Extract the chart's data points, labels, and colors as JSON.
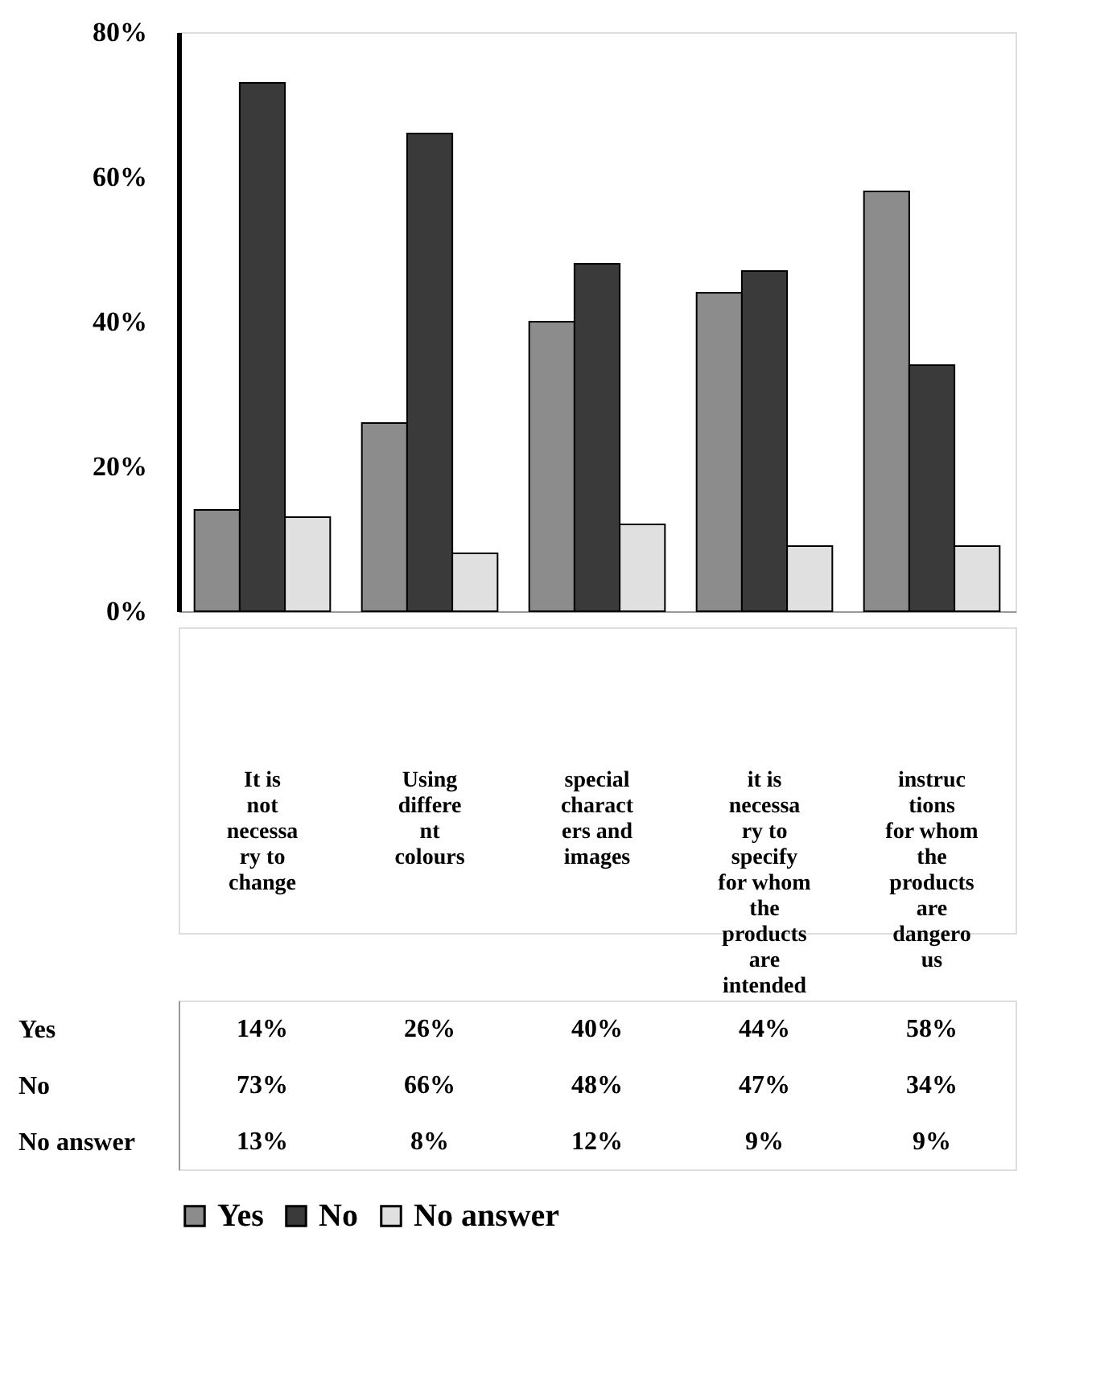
{
  "chart_data": {
    "type": "bar",
    "categories": [
      "It is not necessary to change",
      "Using different colours",
      "special characters and images",
      "it is necessary to specify for whom the products are intended",
      "instructions for whom the products are dangerous"
    ],
    "series": [
      {
        "name": "Yes",
        "color": "#8c8c8c",
        "values": [
          14,
          26,
          40,
          44,
          58
        ],
        "value_labels": [
          "14%",
          "26%",
          "40%",
          "44%",
          "58%"
        ]
      },
      {
        "name": "No",
        "color": "#3a3a3a",
        "values": [
          73,
          66,
          48,
          47,
          34
        ],
        "value_labels": [
          "73%",
          "66%",
          "48%",
          "47%",
          "34%"
        ]
      },
      {
        "name": "No answer",
        "color": "#e0e0e0",
        "values": [
          13,
          8,
          12,
          9,
          9
        ],
        "value_labels": [
          "13%",
          "8%",
          "12%",
          "9%",
          "9%"
        ]
      }
    ],
    "ylim": [
      0,
      80
    ],
    "yticks": [
      {
        "value": 0,
        "label": "0%"
      },
      {
        "value": 20,
        "label": "20%"
      },
      {
        "value": 40,
        "label": "40%"
      },
      {
        "value": 60,
        "label": "60%"
      },
      {
        "value": 80,
        "label": "80%"
      }
    ],
    "grid": false,
    "legend": "bottom"
  }
}
